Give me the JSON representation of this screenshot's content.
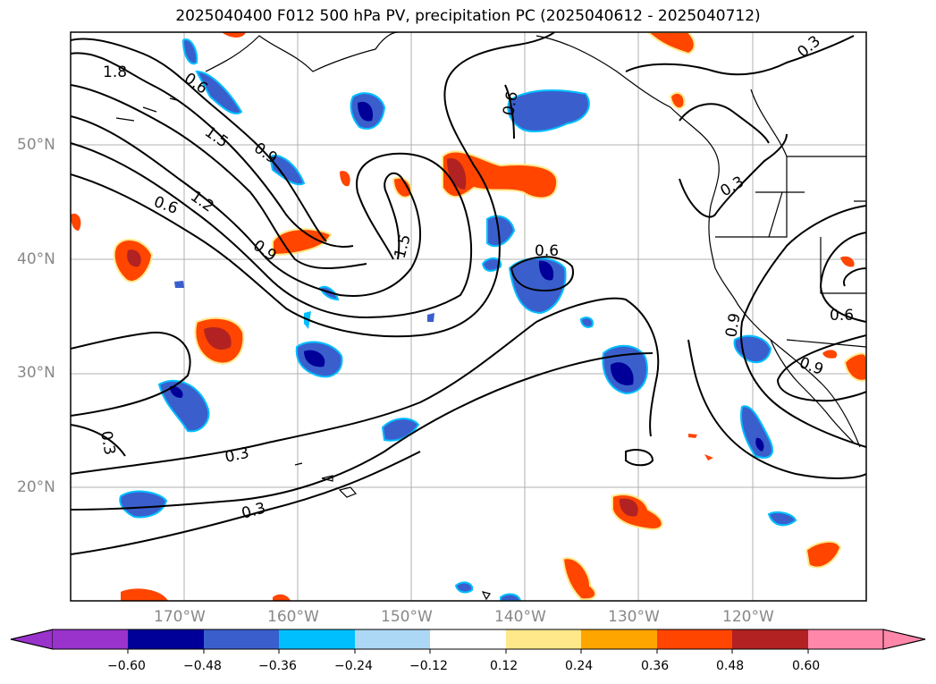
{
  "title": "2025040400 F012 500 hPa PV, precipitation PC (2025040612 - 2025040712)",
  "lat_labels": [
    {
      "value": 50,
      "text": "50°N"
    },
    {
      "value": 40,
      "text": "40°N"
    },
    {
      "value": 30,
      "text": "30°N"
    },
    {
      "value": 20,
      "text": "20°N"
    }
  ],
  "lon_labels": [
    {
      "value": -170,
      "text": "170°W"
    },
    {
      "value": -160,
      "text": "160°W"
    },
    {
      "value": -150,
      "text": "150°W"
    },
    {
      "value": -140,
      "text": "140°W"
    },
    {
      "value": -130,
      "text": "130°W"
    },
    {
      "value": -120,
      "text": "120°W"
    }
  ],
  "contour_labels": [
    "1.8",
    "0.6",
    "1.5",
    "0.9",
    "1.2",
    "0.6",
    "0.9",
    "1.5",
    "0.6",
    "0.6",
    "0.3",
    "0.3",
    "0.3",
    "0.3",
    "0.3",
    "0.6",
    "0.9",
    "0.9"
  ],
  "colorbar": {
    "ticks": [
      "−0.60",
      "−0.48",
      "−0.36",
      "−0.24",
      "−0.12",
      "0.12",
      "0.24",
      "0.36",
      "0.48",
      "0.60"
    ],
    "colors": [
      "#9933cc",
      "#000099",
      "#3a5fcd",
      "#00bfff",
      "#add8f5",
      "#ffffff",
      "#ffe88a",
      "#ffa500",
      "#ff4500",
      "#b22222",
      "#ff88aa"
    ]
  },
  "colors": {
    "contour": "#000000",
    "grid": "#b0b0b0",
    "coast": "#000000"
  }
}
